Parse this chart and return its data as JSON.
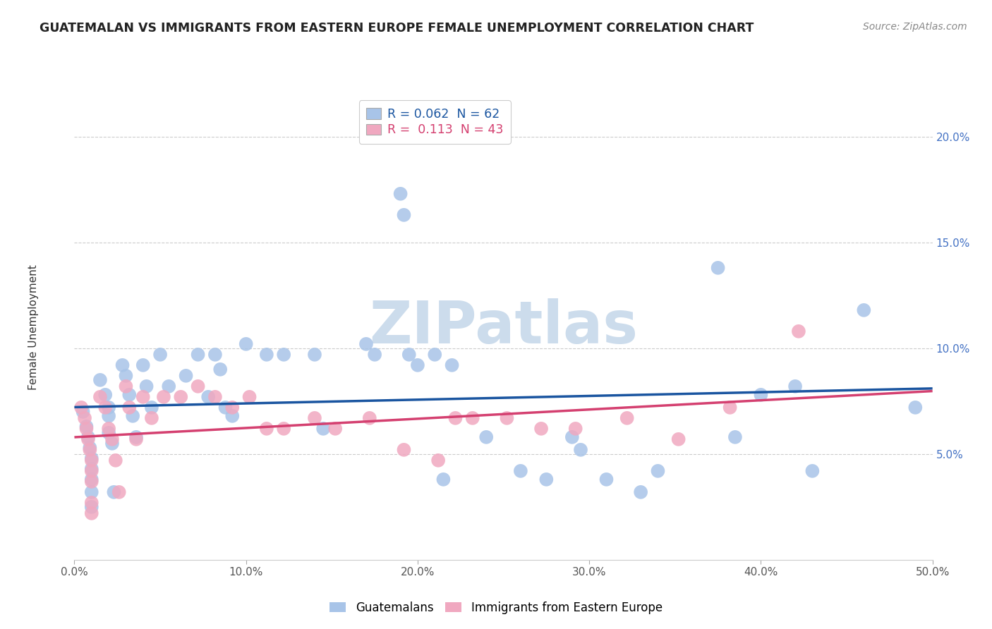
{
  "title": "GUATEMALAN VS IMMIGRANTS FROM EASTERN EUROPE FEMALE UNEMPLOYMENT CORRELATION CHART",
  "source": "Source: ZipAtlas.com",
  "ylabel": "Female Unemployment",
  "xlim": [
    0.0,
    0.5
  ],
  "ylim": [
    0.0,
    0.22
  ],
  "xticks": [
    0.0,
    0.1,
    0.2,
    0.3,
    0.4,
    0.5
  ],
  "xtick_labels": [
    "0.0%",
    "10.0%",
    "20.0%",
    "30.0%",
    "40.0%",
    "50.0%"
  ],
  "ytick_labels_right": [
    "5.0%",
    "10.0%",
    "15.0%",
    "20.0%"
  ],
  "yticks_right": [
    0.05,
    0.1,
    0.15,
    0.2
  ],
  "legend_labels": [
    "Guatemalans",
    "Immigrants from Eastern Europe"
  ],
  "series1_color": "#a8c4e8",
  "series2_color": "#f0a8c0",
  "series1_line_color": "#1a55a0",
  "series2_line_color": "#d44070",
  "series1_R": "0.062",
  "series1_N": "62",
  "series2_R": "0.113",
  "series2_N": "43",
  "watermark": "ZIPatlas",
  "watermark_color": "#ccdcec",
  "series1_x": [
    0.005,
    0.007,
    0.008,
    0.009,
    0.01,
    0.01,
    0.01,
    0.01,
    0.01,
    0.015,
    0.018,
    0.02,
    0.02,
    0.02,
    0.022,
    0.023,
    0.028,
    0.03,
    0.032,
    0.034,
    0.036,
    0.04,
    0.042,
    0.045,
    0.05,
    0.055,
    0.065,
    0.072,
    0.078,
    0.082,
    0.085,
    0.088,
    0.092,
    0.1,
    0.112,
    0.122,
    0.14,
    0.145,
    0.17,
    0.175,
    0.19,
    0.192,
    0.195,
    0.2,
    0.21,
    0.215,
    0.22,
    0.24,
    0.26,
    0.275,
    0.29,
    0.295,
    0.31,
    0.33,
    0.34,
    0.375,
    0.385,
    0.4,
    0.42,
    0.43,
    0.46,
    0.49
  ],
  "series1_y": [
    0.07,
    0.063,
    0.058,
    0.053,
    0.048,
    0.043,
    0.038,
    0.032,
    0.025,
    0.085,
    0.078,
    0.072,
    0.068,
    0.06,
    0.055,
    0.032,
    0.092,
    0.087,
    0.078,
    0.068,
    0.058,
    0.092,
    0.082,
    0.072,
    0.097,
    0.082,
    0.087,
    0.097,
    0.077,
    0.097,
    0.09,
    0.072,
    0.068,
    0.102,
    0.097,
    0.097,
    0.097,
    0.062,
    0.102,
    0.097,
    0.173,
    0.163,
    0.097,
    0.092,
    0.097,
    0.038,
    0.092,
    0.058,
    0.042,
    0.038,
    0.058,
    0.052,
    0.038,
    0.032,
    0.042,
    0.138,
    0.058,
    0.078,
    0.082,
    0.042,
    0.118,
    0.072
  ],
  "series2_x": [
    0.004,
    0.006,
    0.007,
    0.008,
    0.009,
    0.01,
    0.01,
    0.01,
    0.01,
    0.01,
    0.015,
    0.018,
    0.02,
    0.022,
    0.024,
    0.026,
    0.03,
    0.032,
    0.036,
    0.04,
    0.045,
    0.052,
    0.062,
    0.072,
    0.082,
    0.092,
    0.102,
    0.112,
    0.122,
    0.14,
    0.152,
    0.172,
    0.192,
    0.212,
    0.222,
    0.232,
    0.252,
    0.272,
    0.292,
    0.322,
    0.352,
    0.382,
    0.422
  ],
  "series2_y": [
    0.072,
    0.067,
    0.062,
    0.057,
    0.052,
    0.047,
    0.042,
    0.037,
    0.027,
    0.022,
    0.077,
    0.072,
    0.062,
    0.057,
    0.047,
    0.032,
    0.082,
    0.072,
    0.057,
    0.077,
    0.067,
    0.077,
    0.077,
    0.082,
    0.077,
    0.072,
    0.077,
    0.062,
    0.062,
    0.067,
    0.062,
    0.067,
    0.052,
    0.047,
    0.067,
    0.067,
    0.067,
    0.062,
    0.062,
    0.067,
    0.057,
    0.072,
    0.108
  ]
}
